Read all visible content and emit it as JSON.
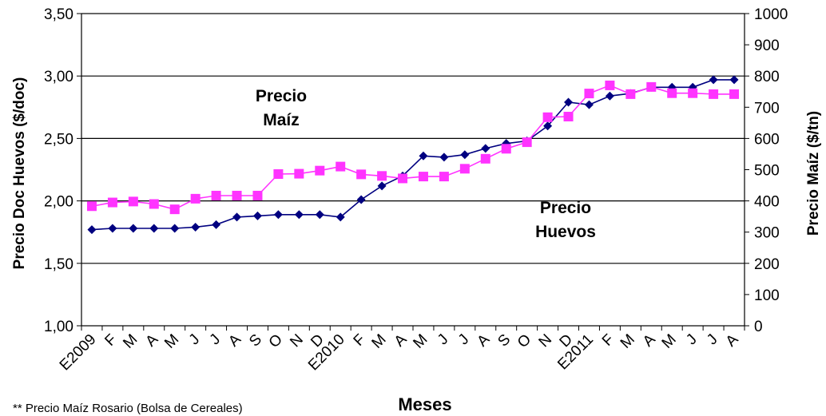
{
  "chart_data": {
    "type": "line",
    "categories": [
      "E2009",
      "F",
      "M",
      "A",
      "M",
      "J",
      "J",
      "A",
      "S",
      "O",
      "N",
      "D",
      "E2010",
      "F",
      "M",
      "A",
      "M",
      "J",
      "J",
      "A",
      "S",
      "O",
      "N",
      "D",
      "E2011",
      "F",
      "M",
      "A",
      "M",
      "J",
      "J",
      "A"
    ],
    "xlabel": "Meses",
    "ylabel_left": "Precio Doc Huevos  ($/doc)",
    "ylabel_right": "Precio Maíz ($/tn)",
    "y_left": {
      "min": 1.0,
      "max": 3.5,
      "ticks": [
        "1,00",
        "1,50",
        "2,00",
        "2,50",
        "3,00",
        "3,50"
      ]
    },
    "y_right": {
      "min": 0,
      "max": 1000,
      "ticks": [
        "0",
        "100",
        "200",
        "300",
        "400",
        "500",
        "600",
        "700",
        "800",
        "900",
        "1000"
      ]
    },
    "grid": "horizontal",
    "series": [
      {
        "name": "Precio Huevos",
        "axis": "left",
        "color": "#000080",
        "marker": "diamond",
        "values": [
          1.77,
          1.78,
          1.78,
          1.78,
          1.78,
          1.79,
          1.81,
          1.87,
          1.88,
          1.89,
          1.89,
          1.89,
          1.87,
          2.01,
          2.12,
          2.2,
          2.36,
          2.35,
          2.37,
          2.42,
          2.46,
          2.48,
          2.6,
          2.79,
          2.77,
          2.84,
          2.86,
          2.91,
          2.91,
          2.91,
          2.97,
          2.97
        ]
      },
      {
        "name": "Precio Maíz",
        "axis": "right",
        "color": "#FF33FF",
        "marker": "square",
        "values": [
          383,
          395,
          398,
          390,
          373,
          407,
          417,
          417,
          417,
          486,
          487,
          497,
          510,
          485,
          480,
          472,
          478,
          478,
          503,
          535,
          567,
          588,
          668,
          670,
          744,
          770,
          742,
          765,
          745,
          745,
          742,
          742
        ]
      }
    ],
    "annotations": [
      {
        "lines": [
          "Precio",
          "Maíz"
        ]
      },
      {
        "lines": [
          "Precio",
          "Huevos"
        ]
      }
    ],
    "source_note": "** Precio Maíz Rosario (Bolsa de Cereales)"
  }
}
